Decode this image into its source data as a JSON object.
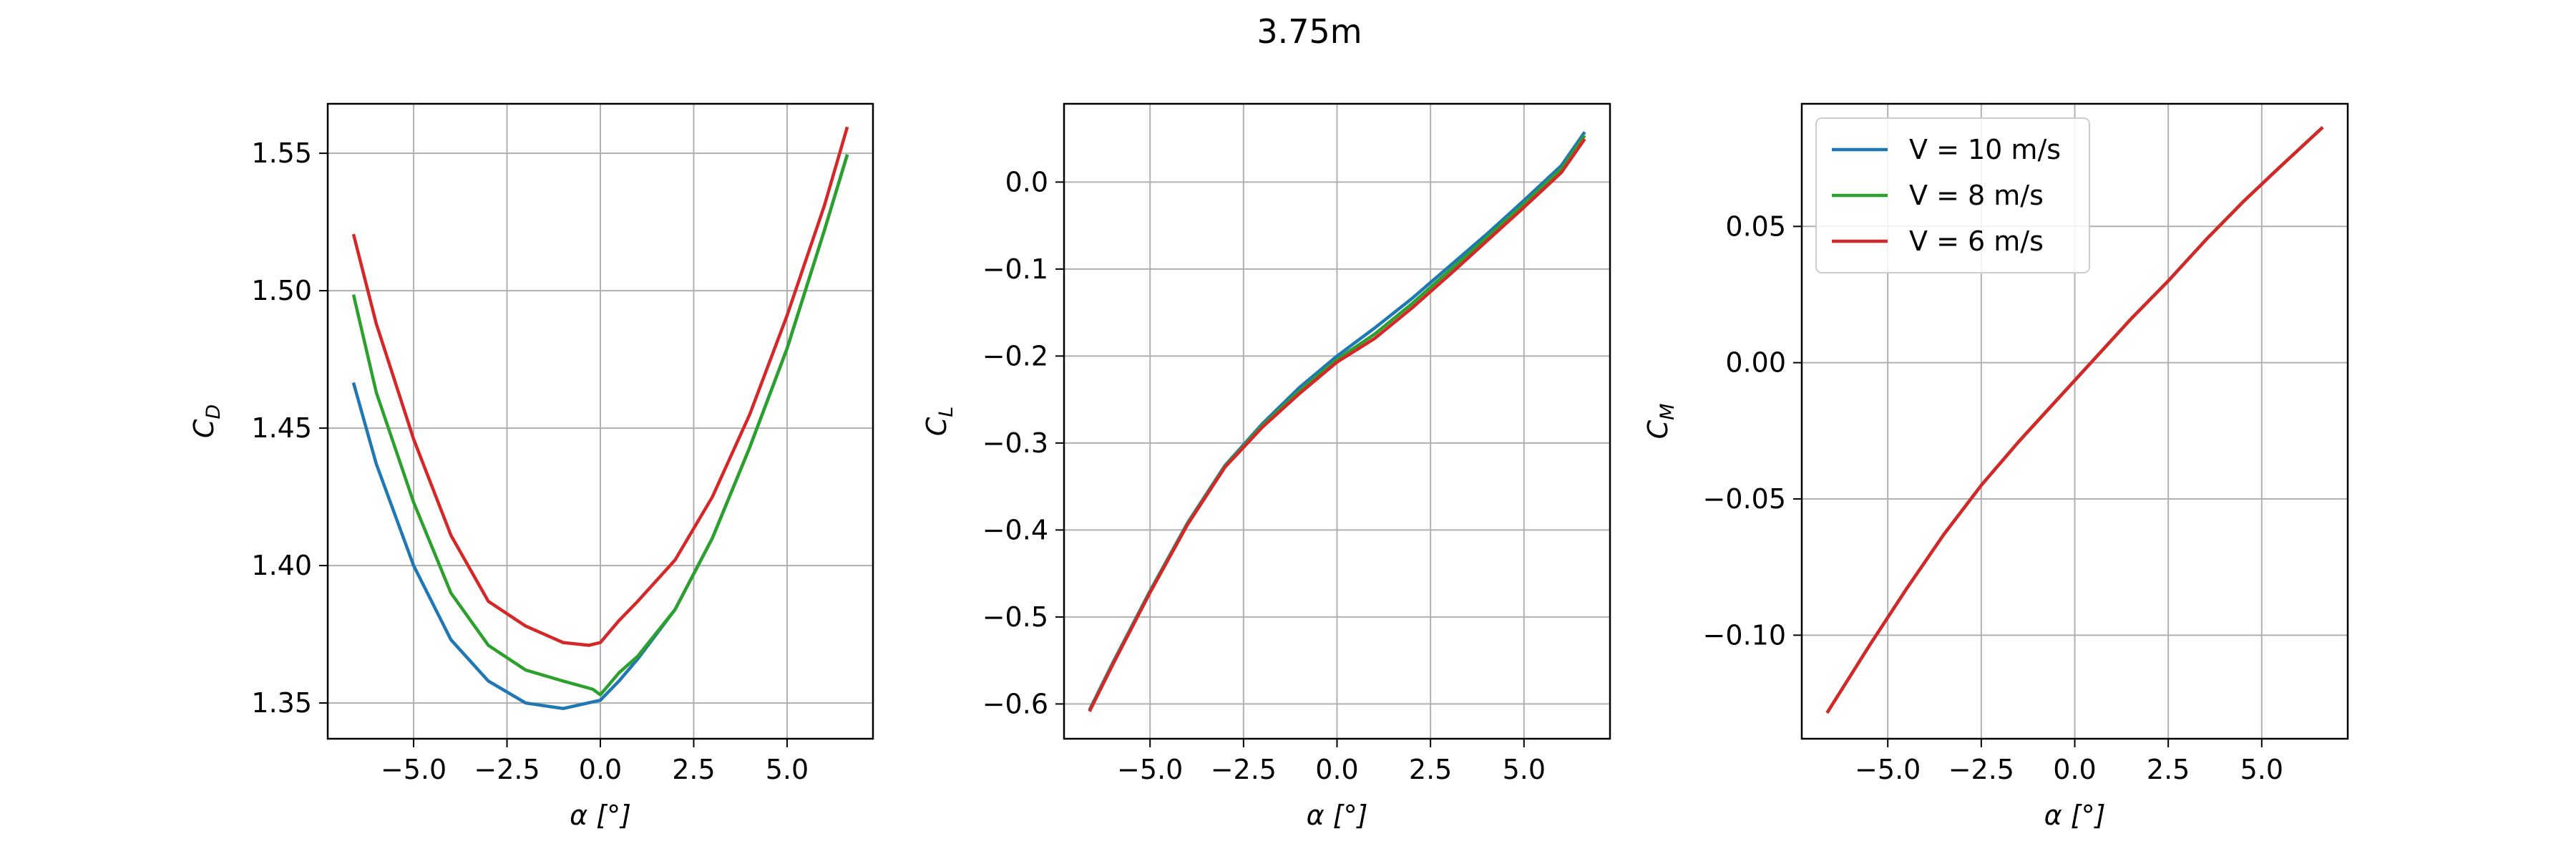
{
  "figure": {
    "suptitle": "3.75m"
  },
  "chart_data": [
    {
      "type": "line",
      "xlabel": "α [°]",
      "ylabel_main": "C",
      "ylabel_sub": "D",
      "xlim": [
        -7.3,
        7.3
      ],
      "ylim": [
        1.337,
        1.568
      ],
      "xticks": [
        -5.0,
        -2.5,
        0.0,
        2.5,
        5.0
      ],
      "xtick_labels": [
        "−5.0",
        "−2.5",
        "0.0",
        "2.5",
        "5.0"
      ],
      "yticks": [
        1.35,
        1.4,
        1.45,
        1.5,
        1.55
      ],
      "ytick_labels": [
        "1.35",
        "1.40",
        "1.45",
        "1.50",
        "1.55"
      ],
      "grid": true,
      "series": [
        {
          "color": "#1f77b4",
          "x": [
            -6.6,
            -6.0,
            -5.0,
            -4.0,
            -3.0,
            -2.0,
            -1.0,
            0.0,
            0.5,
            1.0,
            2.0,
            3.0,
            4.0,
            5.0,
            6.0,
            6.6
          ],
          "y": [
            1.466,
            1.437,
            1.4,
            1.373,
            1.358,
            1.35,
            1.348,
            1.351,
            1.358,
            1.366,
            1.384,
            1.41,
            1.443,
            1.479,
            1.522,
            1.549
          ]
        },
        {
          "color": "#2ca02c",
          "x": [
            -6.6,
            -6.0,
            -5.0,
            -4.0,
            -3.0,
            -2.0,
            -1.0,
            -0.2,
            0.0,
            0.5,
            1.0,
            2.0,
            3.0,
            4.0,
            5.0,
            6.0,
            6.6
          ],
          "y": [
            1.498,
            1.463,
            1.423,
            1.39,
            1.371,
            1.362,
            1.358,
            1.355,
            1.353,
            1.361,
            1.367,
            1.384,
            1.41,
            1.443,
            1.479,
            1.522,
            1.549
          ]
        },
        {
          "color": "#d62728",
          "x": [
            -6.6,
            -6.0,
            -5.0,
            -4.0,
            -3.0,
            -2.0,
            -1.0,
            -0.3,
            0.0,
            0.5,
            1.0,
            2.0,
            3.0,
            4.0,
            5.0,
            6.0,
            6.6
          ],
          "y": [
            1.52,
            1.488,
            1.446,
            1.411,
            1.387,
            1.378,
            1.372,
            1.371,
            1.372,
            1.38,
            1.387,
            1.402,
            1.425,
            1.455,
            1.491,
            1.531,
            1.559
          ]
        }
      ]
    },
    {
      "type": "line",
      "xlabel": "α [°]",
      "ylabel_main": "C",
      "ylabel_sub": "L",
      "xlim": [
        -7.3,
        7.3
      ],
      "ylim": [
        -0.64,
        0.09
      ],
      "xticks": [
        -5.0,
        -2.5,
        0.0,
        2.5,
        5.0
      ],
      "xtick_labels": [
        "−5.0",
        "−2.5",
        "0.0",
        "2.5",
        "5.0"
      ],
      "yticks": [
        -0.6,
        -0.5,
        -0.4,
        -0.3,
        -0.2,
        -0.1,
        0.0
      ],
      "ytick_labels": [
        "−0.6",
        "−0.5",
        "−0.4",
        "−0.3",
        "−0.2",
        "−0.1",
        "0.0"
      ],
      "grid": true,
      "series": [
        {
          "color": "#1f77b4",
          "x": [
            -6.6,
            -6.0,
            -5.0,
            -4.0,
            -3.0,
            -2.0,
            -1.0,
            0.0,
            1.0,
            2.0,
            3.0,
            4.0,
            5.0,
            6.0,
            6.6
          ],
          "y": [
            -0.605,
            -0.553,
            -0.47,
            -0.392,
            -0.326,
            -0.278,
            -0.236,
            -0.2,
            -0.168,
            -0.134,
            -0.097,
            -0.06,
            -0.021,
            0.019,
            0.056
          ]
        },
        {
          "color": "#2ca02c",
          "x": [
            -6.6,
            -6.0,
            -5.0,
            -4.0,
            -3.0,
            -2.0,
            -1.0,
            0.0,
            1.0,
            2.0,
            3.0,
            4.0,
            5.0,
            6.0,
            6.6
          ],
          "y": [
            -0.606,
            -0.554,
            -0.471,
            -0.393,
            -0.327,
            -0.28,
            -0.24,
            -0.204,
            -0.175,
            -0.14,
            -0.102,
            -0.064,
            -0.025,
            0.015,
            0.052
          ]
        },
        {
          "color": "#d62728",
          "x": [
            -6.6,
            -6.0,
            -5.0,
            -4.0,
            -3.0,
            -2.0,
            -1.0,
            0.0,
            1.0,
            2.0,
            3.0,
            4.0,
            5.0,
            6.0,
            6.6
          ],
          "y": [
            -0.607,
            -0.555,
            -0.472,
            -0.394,
            -0.328,
            -0.282,
            -0.243,
            -0.207,
            -0.18,
            -0.145,
            -0.107,
            -0.068,
            -0.029,
            0.011,
            0.048
          ]
        }
      ]
    },
    {
      "type": "line",
      "xlabel": "α [°]",
      "ylabel_main": "C",
      "ylabel_sub": "M",
      "xlim": [
        -7.3,
        7.3
      ],
      "ylim": [
        -0.138,
        0.095
      ],
      "xticks": [
        -5.0,
        -2.5,
        0.0,
        2.5,
        5.0
      ],
      "xtick_labels": [
        "−5.0",
        "−2.5",
        "0.0",
        "2.5",
        "5.0"
      ],
      "yticks": [
        -0.1,
        -0.05,
        0.0,
        0.05
      ],
      "ytick_labels": [
        "−0.10",
        "−0.05",
        "0.00",
        "0.05"
      ],
      "grid": true,
      "legend": {
        "location": "upper left",
        "entries": [
          {
            "label": "V = 10 m/s",
            "color": "#1f77b4"
          },
          {
            "label": "V = 8 m/s",
            "color": "#2ca02c"
          },
          {
            "label": "V = 6 m/s",
            "color": "#d62728"
          }
        ]
      },
      "series": [
        {
          "color": "#1f77b4",
          "x": [
            -6.6,
            -5.5,
            -4.5,
            -3.5,
            -2.5,
            -1.5,
            -0.5,
            0.5,
            1.5,
            2.5,
            3.5,
            4.5,
            5.5,
            6.6
          ],
          "y": [
            -0.128,
            -0.104,
            -0.083,
            -0.063,
            -0.045,
            -0.029,
            -0.014,
            0.001,
            0.016,
            0.03,
            0.045,
            0.059,
            0.072,
            0.086
          ]
        },
        {
          "color": "#2ca02c",
          "x": [
            -6.6,
            -5.5,
            -4.5,
            -3.5,
            -2.5,
            -1.5,
            -0.5,
            0.5,
            1.5,
            2.5,
            3.5,
            4.5,
            5.5,
            6.6
          ],
          "y": [
            -0.128,
            -0.104,
            -0.083,
            -0.063,
            -0.045,
            -0.029,
            -0.014,
            0.001,
            0.016,
            0.03,
            0.045,
            0.059,
            0.072,
            0.086
          ]
        },
        {
          "color": "#d62728",
          "x": [
            -6.6,
            -5.5,
            -4.5,
            -3.5,
            -2.5,
            -1.5,
            -0.5,
            0.5,
            1.5,
            2.5,
            3.5,
            4.5,
            5.5,
            6.6
          ],
          "y": [
            -0.128,
            -0.104,
            -0.083,
            -0.063,
            -0.045,
            -0.029,
            -0.014,
            0.001,
            0.016,
            0.03,
            0.045,
            0.059,
            0.072,
            0.086
          ]
        }
      ]
    }
  ]
}
